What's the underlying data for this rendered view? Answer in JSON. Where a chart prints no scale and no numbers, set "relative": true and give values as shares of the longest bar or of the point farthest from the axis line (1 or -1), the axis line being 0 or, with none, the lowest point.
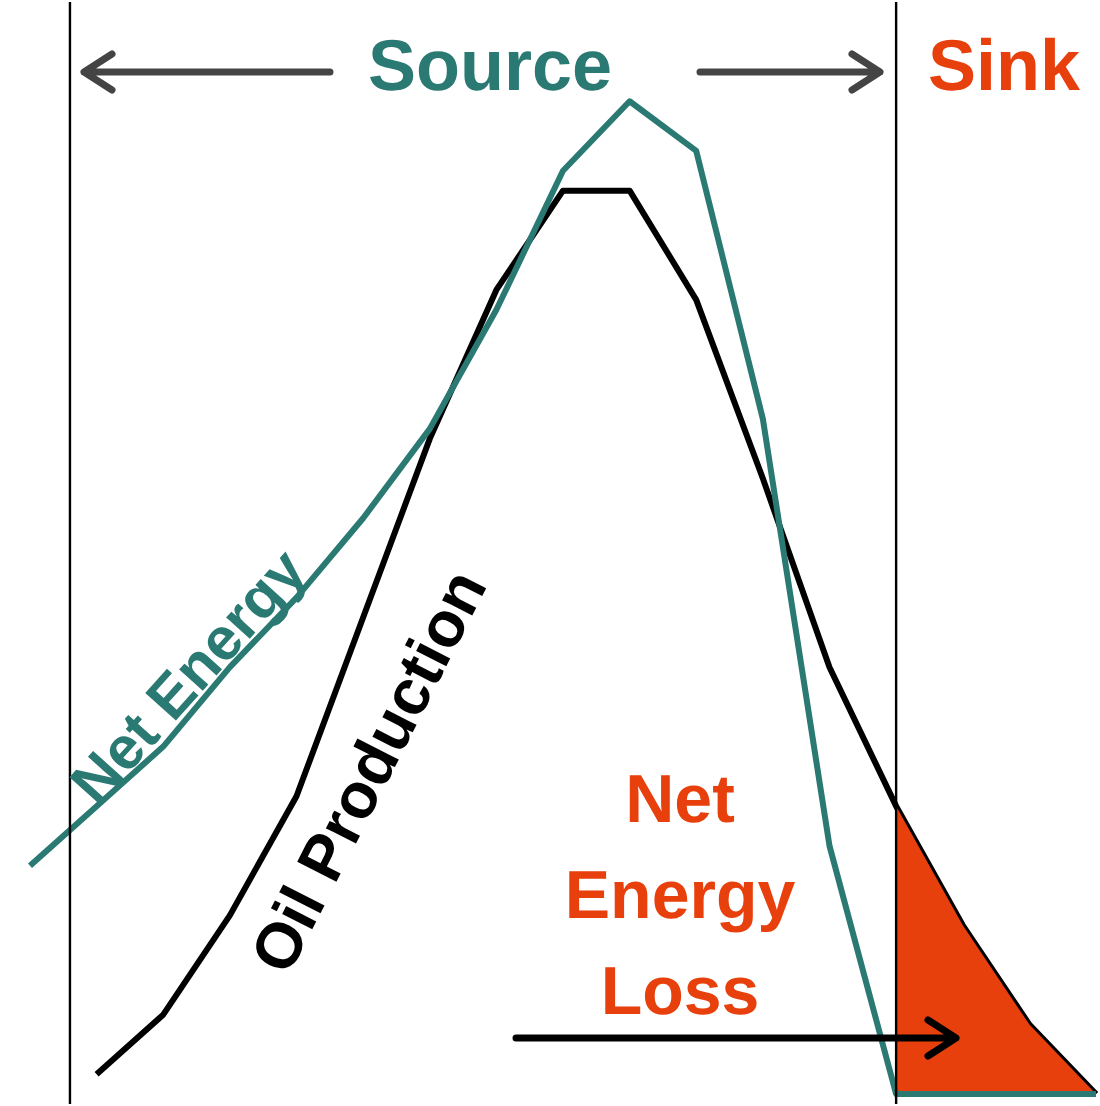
{
  "chart_data": {
    "type": "line",
    "relative": true,
    "categories": [
      null,
      null,
      null,
      null,
      null,
      null,
      null,
      null,
      null,
      null,
      null,
      null,
      null,
      null,
      null,
      null,
      null
    ],
    "annotations": [
      "Source",
      "Sink"
    ],
    "series": [
      {
        "name": "Oil Production",
        "color": "#000000",
        "values": [
          null,
          0.02,
          0.08,
          0.18,
          0.3,
          0.48,
          0.66,
          0.81,
          0.91,
          0.91,
          0.8,
          0.62,
          0.43,
          0.29,
          0.17,
          0.07,
          0
        ]
      },
      {
        "name": "Net Energy Loss",
        "type": "area",
        "color": "#e8400c",
        "values": [
          null,
          null,
          null,
          null,
          null,
          null,
          null,
          null,
          null,
          null,
          null,
          null,
          null,
          0.29,
          0.17,
          0.07,
          0
        ]
      },
      {
        "name": "Net Energy",
        "color": "#2a7a73",
        "values": [
          0.23,
          0.29,
          0.35,
          0.43,
          0.5,
          0.58,
          0.67,
          0.79,
          0.93,
          1.0,
          0.95,
          0.68,
          0.25,
          0,
          0,
          0,
          0
        ]
      }
    ]
  }
}
